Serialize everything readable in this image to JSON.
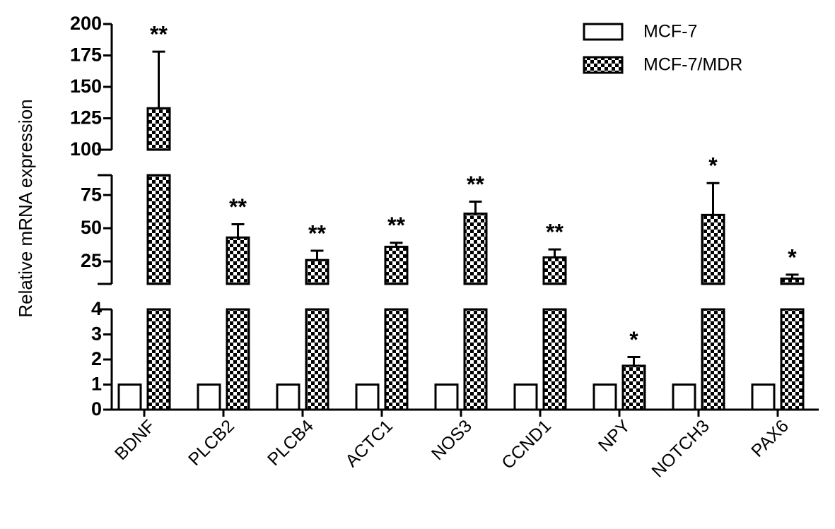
{
  "chart_data": {
    "type": "bar",
    "y_label": "Relative mRNA expression",
    "categories": [
      "BDNF",
      "PLCB2",
      "PLCB4",
      "ACTC1",
      "NOS3",
      "CCND1",
      "NPY",
      "NOTCH3",
      "PAX6"
    ],
    "series": [
      {
        "name": "MCF-7",
        "color": "#ffffff",
        "pattern": "solid",
        "values": [
          1,
          1,
          1,
          1,
          1,
          1,
          1,
          1,
          1
        ]
      },
      {
        "name": "MCF-7/MDR",
        "color": "#000000",
        "pattern": "checker",
        "values": [
          133,
          43,
          26,
          36,
          61,
          28,
          1.75,
          60,
          12
        ],
        "errors": [
          45,
          10,
          7,
          3,
          9,
          6,
          0.35,
          24,
          3
        ]
      }
    ],
    "annotations": [
      "**",
      "**",
      "**",
      "**",
      "**",
      "**",
      "*",
      "*",
      "*"
    ],
    "y_segments": [
      {
        "ylim": [
          0,
          4
        ],
        "yticks": [
          0,
          1,
          2,
          3,
          4
        ]
      },
      {
        "ylim": [
          8,
          90
        ],
        "yticks": [
          25,
          50,
          75
        ]
      },
      {
        "ylim": [
          100,
          200
        ],
        "yticks": [
          100,
          125,
          150,
          175,
          200
        ]
      }
    ],
    "legend": "upper right"
  }
}
